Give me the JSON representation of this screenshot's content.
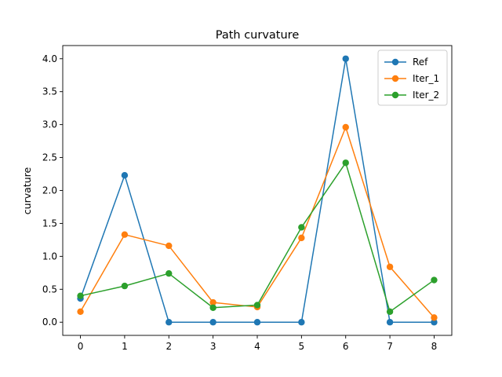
{
  "chart_data": {
    "type": "line",
    "title": "Path curvature",
    "xlabel": "",
    "ylabel": "curvature",
    "x": [
      0,
      1,
      2,
      3,
      4,
      5,
      6,
      7,
      8
    ],
    "xlim": [
      -0.4,
      8.4
    ],
    "ylim": [
      -0.2,
      4.2
    ],
    "xticks": [
      0,
      1,
      2,
      3,
      4,
      5,
      6,
      7,
      8
    ],
    "yticks": [
      "0.0",
      "0.5",
      "1.0",
      "1.5",
      "2.0",
      "2.5",
      "3.0",
      "3.5",
      "4.0"
    ],
    "grid": false,
    "legend_position": "top-right",
    "series": [
      {
        "name": "Ref",
        "color": "#1f77b4",
        "values": [
          0.36,
          2.23,
          0.0,
          0.0,
          0.0,
          0.0,
          4.0,
          0.0,
          0.0
        ]
      },
      {
        "name": "Iter_1",
        "color": "#ff7f0e",
        "values": [
          0.16,
          1.33,
          1.16,
          0.3,
          0.23,
          1.28,
          2.96,
          0.84,
          0.07
        ]
      },
      {
        "name": "Iter_2",
        "color": "#2ca02c",
        "values": [
          0.4,
          0.55,
          0.74,
          0.22,
          0.26,
          1.44,
          2.42,
          0.16,
          0.64
        ]
      }
    ]
  }
}
